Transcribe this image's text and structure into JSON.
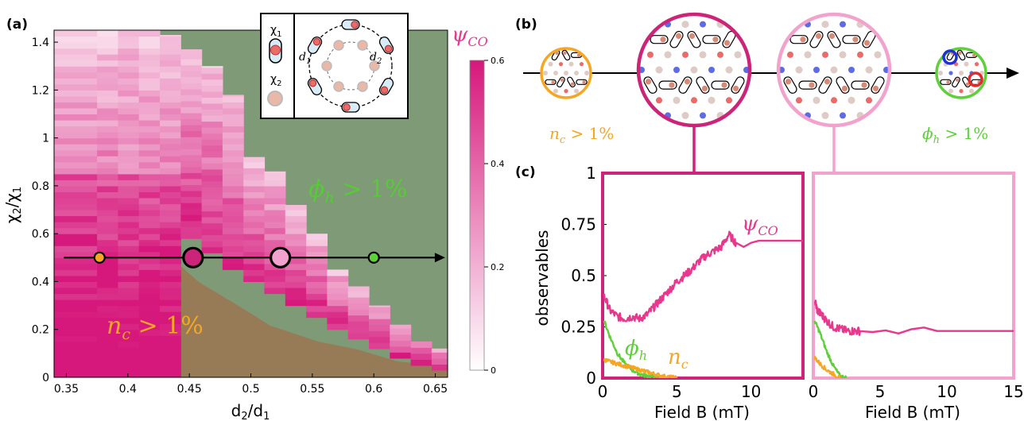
{
  "colors": {
    "green_region": "#7f9a76",
    "brown_region": "#977b56",
    "pink_psi": "#e8388e",
    "deep_magenta": "#cc2478",
    "light_pink": "#f2a3cd",
    "orange_nc": "#f5a623",
    "green_phi": "#5fcf3a",
    "red_particle": "#ea6b68",
    "blue_particle": "#5d6ce6"
  },
  "panel_labels": {
    "a": "(a)",
    "b": "(b)",
    "c": "(c)"
  },
  "panel_a": {
    "xlabel": "d₂/d₁",
    "ylabel": "χ₂/χ₁",
    "region_phi": "ϕ",
    "region_phi_sub": "h",
    "region_phi_rest": " > 1%",
    "region_nc": "n",
    "region_nc_sub": "c",
    "region_nc_rest": " > 1%",
    "colorbar_title": "ψ",
    "colorbar_title_sub": "CO",
    "inset": {
      "chi1": "χ",
      "chi1_sub": "1",
      "chi2": "χ",
      "chi2_sub": "2",
      "d1": "d",
      "d1_sub": "1",
      "d2": "d",
      "d2_sub": "2"
    }
  },
  "panel_b": {
    "label_nc": "n",
    "label_nc_sub": "c",
    "label_nc_rest": " > 1%",
    "label_phi": "ϕ",
    "label_phi_sub": "h",
    "label_phi_rest": " > 1%"
  },
  "panel_c": {
    "ylabel": "observables",
    "xlabel_left": "Field B (mT)",
    "xlabel_right": "Field B (mT)",
    "label_psi": "ψ",
    "label_psi_sub": "CO",
    "label_phi": "ϕ",
    "label_phi_sub": "h",
    "label_nc": "n",
    "label_nc_sub": "c"
  },
  "chart_data": [
    {
      "type": "heatmap",
      "panel": "(a)",
      "xlabel": "d₂/d₁",
      "ylabel": "χ₂/χ₁",
      "xlim": [
        0.34,
        0.66
      ],
      "ylim": [
        0,
        1.45
      ],
      "xticks": [
        "0.35",
        "0.4",
        "0.45",
        "0.5",
        "0.55",
        "0.6",
        "0.65"
      ],
      "yticks": [
        "0",
        "0.2",
        "0.4",
        "0.6",
        "0.8",
        "1",
        "1.2",
        "1.4"
      ],
      "colorbar": {
        "label": "ψCO",
        "range": [
          0,
          0.6
        ],
        "ticks": [
          "0",
          "0.2",
          "0.4",
          "0.6"
        ]
      },
      "columns": [
        {
          "x": 0.34,
          "w": 0.035,
          "ybot": 0.0,
          "ytop": 1.45
        },
        {
          "x": 0.375,
          "w": 0.017,
          "ybot": 0.0,
          "ytop": 1.45
        },
        {
          "x": 0.392,
          "w": 0.017,
          "ybot": 0.0,
          "ytop": 1.45
        },
        {
          "x": 0.409,
          "w": 0.017,
          "ybot": 0.0,
          "ytop": 1.45
        },
        {
          "x": 0.426,
          "w": 0.017,
          "ybot": 0.0,
          "ytop": 1.43
        },
        {
          "x": 0.443,
          "w": 0.017,
          "ybot": 0.58,
          "ytop": 1.37
        },
        {
          "x": 0.46,
          "w": 0.017,
          "ybot": 0.52,
          "ytop": 1.3
        },
        {
          "x": 0.477,
          "w": 0.017,
          "ybot": 0.45,
          "ytop": 1.18
        },
        {
          "x": 0.494,
          "w": 0.017,
          "ybot": 0.4,
          "ytop": 0.92
        },
        {
          "x": 0.511,
          "w": 0.017,
          "ybot": 0.35,
          "ytop": 0.86
        },
        {
          "x": 0.528,
          "w": 0.017,
          "ybot": 0.3,
          "ytop": 0.72
        },
        {
          "x": 0.545,
          "w": 0.017,
          "ybot": 0.25,
          "ytop": 0.6
        },
        {
          "x": 0.562,
          "w": 0.017,
          "ybot": 0.2,
          "ytop": 0.45
        },
        {
          "x": 0.579,
          "w": 0.017,
          "ybot": 0.16,
          "ytop": 0.38
        },
        {
          "x": 0.596,
          "w": 0.017,
          "ybot": 0.12,
          "ytop": 0.3
        },
        {
          "x": 0.613,
          "w": 0.017,
          "ybot": 0.08,
          "ytop": 0.22
        },
        {
          "x": 0.63,
          "w": 0.017,
          "ybot": 0.05,
          "ytop": 0.15
        },
        {
          "x": 0.647,
          "w": 0.013,
          "ybot": 0.03,
          "ytop": 0.12
        }
      ],
      "path": {
        "y": 0.5,
        "x_start": 0.348,
        "x_end": 0.658
      },
      "markers": [
        {
          "x": 0.377,
          "y": 0.5,
          "size": "small",
          "color": "#f5a623"
        },
        {
          "x": 0.453,
          "y": 0.5,
          "size": "large",
          "color": "#cc2478"
        },
        {
          "x": 0.524,
          "y": 0.5,
          "size": "large",
          "color": "#f2a3cd"
        },
        {
          "x": 0.6,
          "y": 0.5,
          "size": "small",
          "color": "#5fcf3a"
        }
      ]
    },
    {
      "type": "line",
      "panel": "(c) left",
      "xlabel": "Field B (mT)",
      "ylabel": "observables",
      "xlim": [
        0,
        13.5
      ],
      "ylim": [
        0,
        1
      ],
      "xticks": [
        "0",
        "5",
        "10"
      ],
      "yticks": [
        "0",
        "0.25",
        "0.5",
        "0.75",
        "1"
      ],
      "series": [
        {
          "name": "ψCO",
          "x": [
            0.1,
            0.5,
            1,
            1.5,
            2,
            2.5,
            3,
            3.5,
            4,
            4.5,
            5,
            5.5,
            6,
            6.5,
            7,
            7.5,
            8,
            8.5,
            9,
            9.5,
            10,
            10.5,
            11,
            12,
            13.5
          ],
          "values": [
            0.4,
            0.33,
            0.3,
            0.29,
            0.3,
            0.29,
            0.31,
            0.35,
            0.39,
            0.43,
            0.47,
            0.5,
            0.53,
            0.57,
            0.6,
            0.62,
            0.64,
            0.7,
            0.66,
            0.64,
            0.66,
            0.67,
            0.67,
            0.67,
            0.67
          ]
        },
        {
          "name": "ϕh",
          "x": [
            0.1,
            0.5,
            1,
            1.5,
            2,
            2.5,
            3,
            3.5,
            4
          ],
          "values": [
            0.28,
            0.2,
            0.12,
            0.07,
            0.04,
            0.02,
            0.01,
            0.005,
            0.0
          ]
        },
        {
          "name": "nc",
          "x": [
            0.1,
            0.5,
            1,
            1.5,
            2,
            2.5,
            3,
            3.5,
            4,
            4.5,
            5
          ],
          "values": [
            0.09,
            0.08,
            0.07,
            0.06,
            0.05,
            0.04,
            0.03,
            0.02,
            0.01,
            0.005,
            0.0
          ]
        }
      ]
    },
    {
      "type": "line",
      "panel": "(c) right",
      "xlabel": "Field B (mT)",
      "ylabel": "observables",
      "xlim": [
        0,
        15
      ],
      "ylim": [
        0,
        1
      ],
      "xticks": [
        "0",
        "5",
        "10",
        "15"
      ],
      "series": [
        {
          "name": "ψCO",
          "x": [
            0.1,
            0.3,
            0.6,
            1,
            1.5,
            2,
            2.5,
            3,
            3.5,
            15
          ],
          "values": [
            0.38,
            0.33,
            0.31,
            0.28,
            0.25,
            0.24,
            0.23,
            0.23,
            0.23,
            0.23
          ]
        },
        {
          "name": "ϕh",
          "x": [
            0.1,
            0.5,
            1,
            1.5,
            2,
            2.5
          ],
          "values": [
            0.28,
            0.22,
            0.13,
            0.06,
            0.01,
            0.0
          ]
        },
        {
          "name": "nc",
          "x": [
            0.1,
            0.5,
            1,
            1.5,
            2
          ],
          "values": [
            0.1,
            0.07,
            0.04,
            0.02,
            0.0
          ]
        }
      ]
    }
  ]
}
